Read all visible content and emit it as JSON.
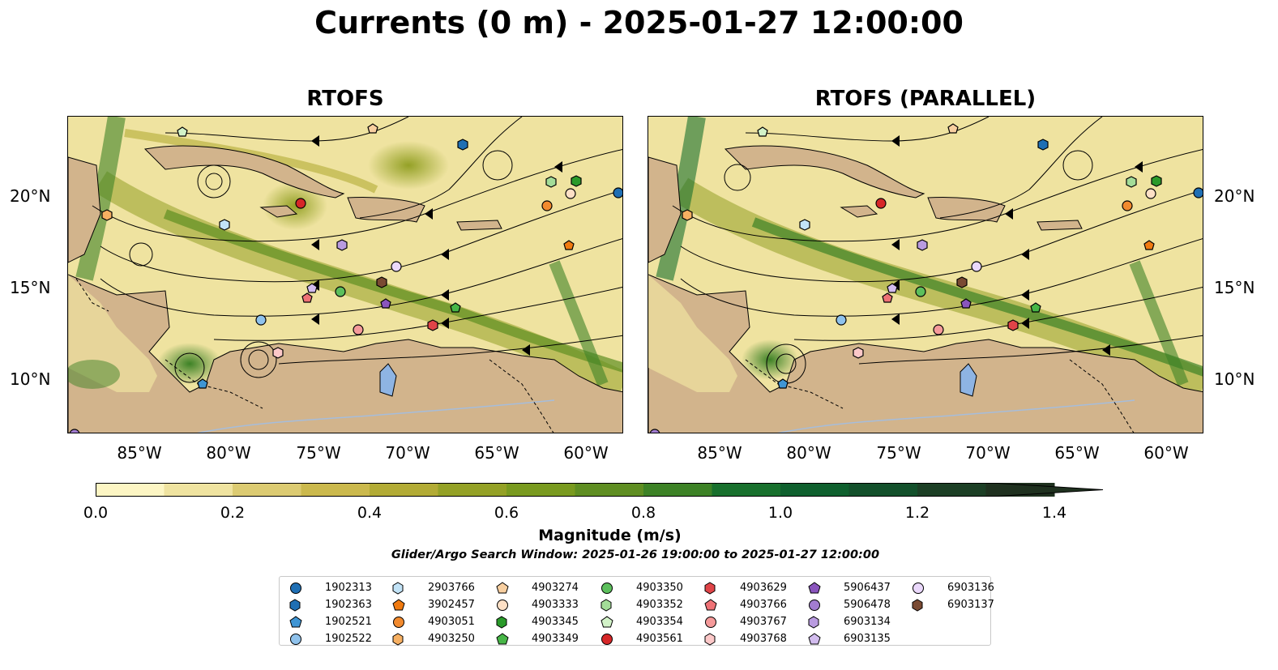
{
  "title": "Currents (0 m) - 2025-01-27 12:00:00",
  "panels": [
    {
      "title": "RTOFS"
    },
    {
      "title": "RTOFS (PARALLEL)"
    }
  ],
  "axes": {
    "lat_labels": [
      "20°N",
      "15°N",
      "10°N"
    ],
    "lon_labels": [
      "85°W",
      "80°W",
      "75°W",
      "70°W",
      "65°W",
      "60°W"
    ]
  },
  "colorbar": {
    "label": "Magnitude (m/s)",
    "ticks": [
      "0.0",
      "0.2",
      "0.4",
      "0.6",
      "0.8",
      "1.0",
      "1.2",
      "1.4"
    ],
    "colors": [
      "#fdf6c4",
      "#efe3a0",
      "#dccb72",
      "#cbb94d",
      "#b2ab35",
      "#94a126",
      "#799a1f",
      "#5f8e22",
      "#3d8226",
      "#18702d",
      "#0f602e",
      "#13502b",
      "#1c3f25",
      "#1f311f"
    ],
    "extend": "max"
  },
  "search_window": "Glider/Argo Search Window: 2025-01-26 19:00:00 to 2025-01-27 12:00:00",
  "land_color": "#d2b48c",
  "legend": [
    {
      "id": "1902313",
      "marker": "circle",
      "color": "#1f6fb4"
    },
    {
      "id": "1902363",
      "marker": "hexagon",
      "color": "#1f6fb4"
    },
    {
      "id": "1902521",
      "marker": "pentagon",
      "color": "#3f95d4"
    },
    {
      "id": "1902522",
      "marker": "circle",
      "color": "#8fc2ec"
    },
    {
      "id": "2903766",
      "marker": "hexagon",
      "color": "#c2e3f7"
    },
    {
      "id": "3902457",
      "marker": "pentagon",
      "color": "#f07a10"
    },
    {
      "id": "4903051",
      "marker": "circle",
      "color": "#f28a2e"
    },
    {
      "id": "4903250",
      "marker": "hexagon",
      "color": "#f7b062"
    },
    {
      "id": "4903274",
      "marker": "pentagon",
      "color": "#f8cfa0"
    },
    {
      "id": "4903333",
      "marker": "circle",
      "color": "#fde0c6"
    },
    {
      "id": "4903345",
      "marker": "hexagon",
      "color": "#2a9a2a"
    },
    {
      "id": "4903349",
      "marker": "pentagon",
      "color": "#47b647"
    },
    {
      "id": "4903350",
      "marker": "circle",
      "color": "#5cbf5c"
    },
    {
      "id": "4903352",
      "marker": "hexagon",
      "color": "#a3dc98"
    },
    {
      "id": "4903354",
      "marker": "pentagon",
      "color": "#d2f2c8"
    },
    {
      "id": "4903561",
      "marker": "circle",
      "color": "#d62728"
    },
    {
      "id": "4903629",
      "marker": "hexagon",
      "color": "#e04448"
    },
    {
      "id": "4903766",
      "marker": "pentagon",
      "color": "#ef7276"
    },
    {
      "id": "4903767",
      "marker": "circle",
      "color": "#f59a9a"
    },
    {
      "id": "4903768",
      "marker": "hexagon",
      "color": "#fcc8c8"
    },
    {
      "id": "5906437",
      "marker": "pentagon",
      "color": "#8a55bd"
    },
    {
      "id": "5906478",
      "marker": "circle",
      "color": "#a27cd0"
    },
    {
      "id": "6903134",
      "marker": "hexagon",
      "color": "#b99be0"
    },
    {
      "id": "6903135",
      "marker": "pentagon",
      "color": "#d2bcee"
    },
    {
      "id": "6903136",
      "marker": "circle",
      "color": "#ead8fb"
    },
    {
      "id": "6903137",
      "marker": "hexagon",
      "color": "#7a4a32"
    }
  ]
}
